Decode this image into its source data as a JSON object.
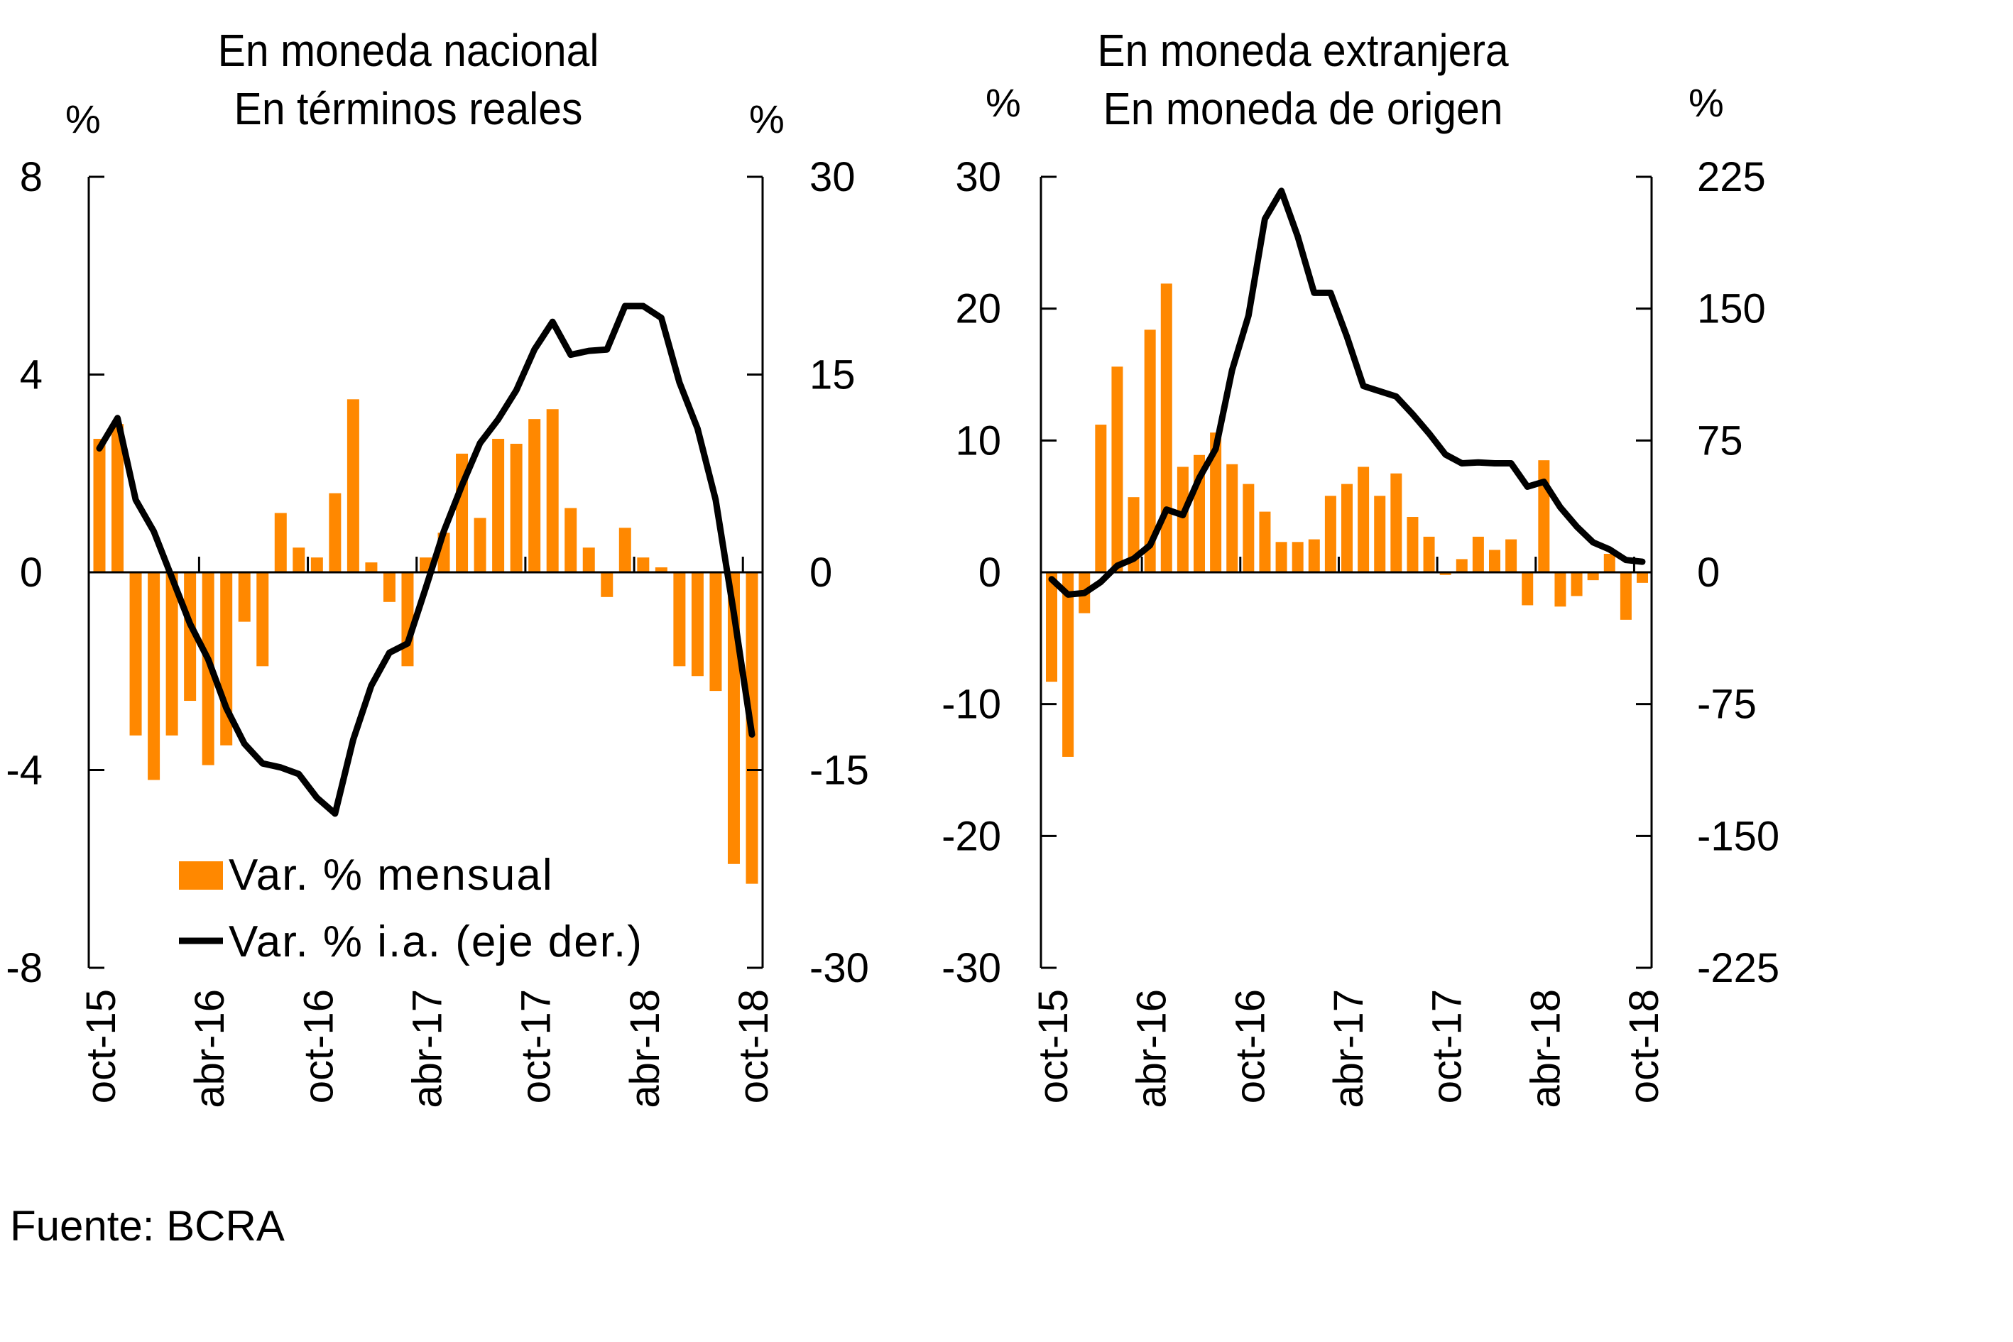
{
  "source": "Fuente: BCRA",
  "colors": {
    "bar": "#FF8800",
    "line": "#000000",
    "axis": "#000000"
  },
  "chart_data": [
    {
      "type": "bar+line",
      "title": [
        "En moneda nacional",
        "En términos reales"
      ],
      "left_unit": "%",
      "right_unit": "%",
      "ylim_left": [
        -8,
        8
      ],
      "yticks_left": [
        8,
        4,
        0,
        -4,
        -8
      ],
      "ylim_right": [
        -30,
        30
      ],
      "yticks_right": [
        30,
        15,
        0,
        -15,
        -30
      ],
      "grid": false,
      "x_tick_labels": [
        "oct-15",
        "abr-16",
        "oct-16",
        "abr-17",
        "oct-17",
        "abr-18",
        "oct-18"
      ],
      "categories": [
        "oct-15",
        "nov-15",
        "dic-15",
        "ene-16",
        "feb-16",
        "mar-16",
        "abr-16",
        "may-16",
        "jun-16",
        "jul-16",
        "ago-16",
        "sep-16",
        "oct-16",
        "nov-16",
        "dic-16",
        "ene-17",
        "feb-17",
        "mar-17",
        "abr-17",
        "may-17",
        "jun-17",
        "jul-17",
        "ago-17",
        "sep-17",
        "oct-17",
        "nov-17",
        "dic-17",
        "ene-18",
        "feb-18",
        "mar-18",
        "abr-18",
        "may-18",
        "jun-18",
        "jul-18",
        "ago-18",
        "sep-18",
        "oct-18"
      ],
      "legend": {
        "position": "bottom-left",
        "entries": [
          "Var. % mensual",
          "Var. % i.a. (eje der.)"
        ]
      },
      "series": [
        {
          "name": "Var. % mensual",
          "type": "bar",
          "axis": "left",
          "values": [
            2.7,
            3.0,
            -3.3,
            -4.2,
            -3.3,
            -2.6,
            -3.9,
            -3.5,
            -1.0,
            -1.9,
            1.2,
            0.5,
            0.3,
            1.6,
            3.5,
            0.2,
            -0.6,
            -1.9,
            0.3,
            0.8,
            2.4,
            1.1,
            2.7,
            2.6,
            3.1,
            3.3,
            1.3,
            0.5,
            -0.5,
            0.9,
            0.3,
            0.1,
            -1.9,
            -2.1,
            -2.4,
            -5.9,
            -6.3
          ]
        },
        {
          "name": "Var. % i.a. (eje der.)",
          "type": "line",
          "axis": "right",
          "values": [
            9.4,
            11.7,
            5.5,
            3.1,
            -0.4,
            -3.9,
            -6.6,
            -10.3,
            -13.0,
            -14.5,
            -14.8,
            -15.3,
            -17.1,
            -18.3,
            -12.7,
            -8.6,
            -6.1,
            -5.4,
            -1.2,
            3.1,
            6.6,
            9.8,
            11.6,
            13.8,
            16.9,
            19.0,
            16.5,
            16.8,
            16.9,
            20.2,
            20.2,
            19.3,
            14.4,
            10.9,
            5.5,
            -3.1,
            -12.3
          ]
        }
      ]
    },
    {
      "type": "bar+line",
      "title": [
        "En moneda extranjera",
        "En moneda de origen"
      ],
      "left_unit": "%",
      "right_unit": "%",
      "ylim_left": [
        -30,
        30
      ],
      "yticks_left": [
        30,
        20,
        10,
        0,
        -10,
        -20,
        -30
      ],
      "ylim_right": [
        -225,
        225
      ],
      "yticks_right": [
        225,
        150,
        75,
        0,
        -75,
        -150,
        -225
      ],
      "grid": false,
      "x_tick_labels": [
        "oct-15",
        "abr-16",
        "oct-16",
        "abr-17",
        "oct-17",
        "abr-18",
        "oct-18"
      ],
      "categories": [
        "oct-15",
        "nov-15",
        "dic-15",
        "ene-16",
        "feb-16",
        "mar-16",
        "abr-16",
        "may-16",
        "jun-16",
        "jul-16",
        "ago-16",
        "sep-16",
        "oct-16",
        "nov-16",
        "dic-16",
        "ene-17",
        "feb-17",
        "mar-17",
        "abr-17",
        "may-17",
        "jun-17",
        "jul-17",
        "ago-17",
        "sep-17",
        "oct-17",
        "nov-17",
        "dic-17",
        "ene-18",
        "feb-18",
        "mar-18",
        "abr-18",
        "may-18",
        "jun-18",
        "jul-18",
        "ago-18",
        "sep-18",
        "oct-18"
      ],
      "series": [
        {
          "name": "Var. % mensual",
          "type": "bar",
          "axis": "left",
          "values": [
            -8.3,
            -14.0,
            -3.1,
            11.2,
            15.6,
            5.7,
            18.4,
            21.9,
            8.0,
            8.9,
            10.6,
            8.2,
            6.7,
            4.6,
            2.3,
            2.3,
            2.5,
            5.8,
            6.7,
            8.0,
            5.8,
            7.5,
            4.2,
            2.7,
            -0.2,
            1.0,
            2.7,
            1.7,
            2.5,
            -2.5,
            8.5,
            -2.6,
            -1.8,
            -0.6,
            1.4,
            -3.6,
            -0.8
          ]
        },
        {
          "name": "Var. % i.a. (eje der.)",
          "type": "line",
          "axis": "right",
          "values": [
            -3.9,
            -12.7,
            -11.8,
            -5.5,
            3.7,
            7.7,
            15.4,
            35.7,
            32.5,
            53.7,
            70.2,
            115,
            146,
            201,
            217,
            191,
            159,
            159,
            134,
            106,
            103,
            100,
            90,
            79,
            67,
            62,
            62.5,
            62,
            62,
            48.7,
            51.5,
            37,
            26,
            17,
            13,
            7,
            6
          ]
        }
      ]
    }
  ]
}
